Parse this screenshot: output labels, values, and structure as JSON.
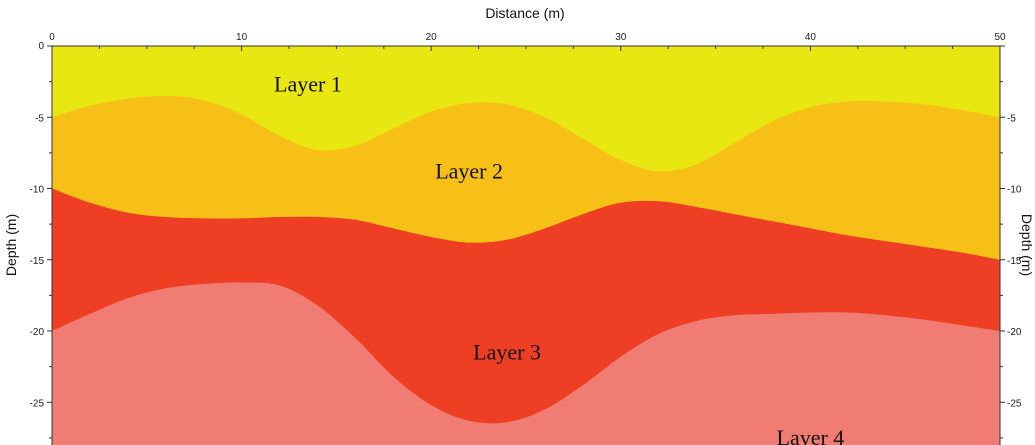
{
  "chart_data": {
    "type": "area",
    "xlabel": "Distance (m)",
    "ylabel": "Depth (m)",
    "ylabel_right": "Depth (m)",
    "xlim": [
      0,
      50
    ],
    "ylim": [
      -28,
      0
    ],
    "x_ticks": [
      0,
      10,
      20,
      30,
      40,
      50
    ],
    "x_tick_labels": [
      "0",
      "10",
      "20",
      "30",
      "40",
      "50"
    ],
    "y_ticks": [
      0,
      -5,
      -10,
      -15,
      -20,
      -25
    ],
    "y_tick_labels": [
      "0",
      "-5",
      "-10",
      "-15",
      "-20",
      "-25"
    ],
    "grid": false,
    "boundaries": [
      {
        "name": "Layer 1 / Layer 2",
        "x": [
          0,
          2,
          4,
          6,
          8,
          10,
          12,
          14,
          16,
          18,
          20,
          22,
          24,
          26,
          28,
          30,
          32,
          34,
          36,
          38,
          40,
          42,
          44,
          46,
          48,
          50
        ],
        "y": [
          -5,
          -4.2,
          -3.7,
          -3.5,
          -3.8,
          -4.8,
          -6.3,
          -7.3,
          -7.0,
          -5.8,
          -4.6,
          -4.0,
          -4.1,
          -5.0,
          -6.5,
          -8.0,
          -8.8,
          -8.3,
          -6.8,
          -5.3,
          -4.3,
          -3.9,
          -3.9,
          -4.1,
          -4.5,
          -5
        ]
      },
      {
        "name": "Layer 2 / Layer 3",
        "x": [
          0,
          2,
          4,
          6,
          8,
          10,
          12,
          14,
          16,
          18,
          20,
          22,
          24,
          26,
          28,
          30,
          32,
          34,
          36,
          38,
          40,
          42,
          44,
          46,
          48,
          50
        ],
        "y": [
          -10,
          -11.0,
          -11.7,
          -12.0,
          -12.1,
          -12.1,
          -12.0,
          -12.0,
          -12.2,
          -12.8,
          -13.4,
          -13.8,
          -13.6,
          -12.8,
          -11.8,
          -11.0,
          -10.9,
          -11.3,
          -11.8,
          -12.3,
          -12.8,
          -13.3,
          -13.7,
          -14.1,
          -14.5,
          -15
        ]
      },
      {
        "name": "Layer 3 / Layer 4",
        "x": [
          0,
          2,
          4,
          6,
          8,
          10,
          12,
          14,
          16,
          18,
          20,
          22,
          24,
          26,
          28,
          30,
          32,
          34,
          36,
          38,
          40,
          42,
          44,
          46,
          48,
          50
        ],
        "y": [
          -20,
          -18.8,
          -17.7,
          -17.0,
          -16.7,
          -16.6,
          -16.8,
          -18.2,
          -20.5,
          -23.2,
          -25.2,
          -26.3,
          -26.4,
          -25.5,
          -23.8,
          -21.8,
          -20.2,
          -19.3,
          -18.9,
          -18.8,
          -18.7,
          -18.7,
          -18.9,
          -19.2,
          -19.6,
          -20
        ]
      }
    ],
    "layers": [
      {
        "name": "Layer 1",
        "color": "#e9e712",
        "label_x": 13.5,
        "label_y": -2.7
      },
      {
        "name": "Layer 2",
        "color": "#f6c016",
        "label_x": 22,
        "label_y": -8.8
      },
      {
        "name": "Layer 3",
        "color": "#ee3e24",
        "label_x": 24,
        "label_y": -21.5
      },
      {
        "name": "Layer 4",
        "color": "#f17c73",
        "label_x": 40,
        "label_y": -27.5
      }
    ]
  }
}
